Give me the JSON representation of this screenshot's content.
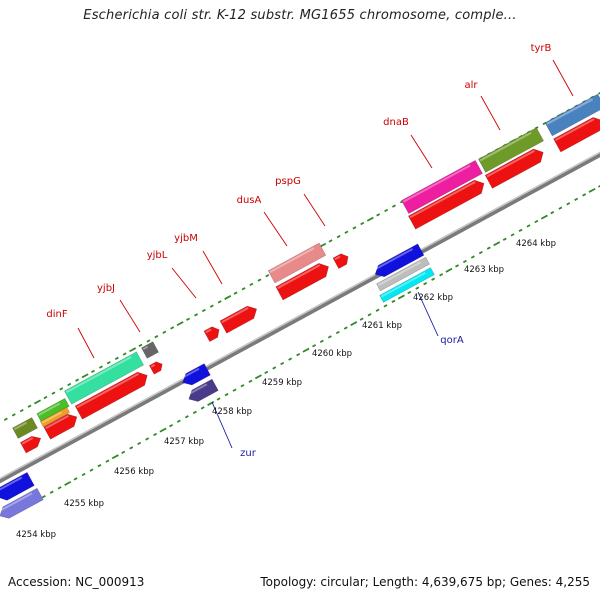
{
  "title": "Escherichia coli str. K-12 substr. MG1655 chromosome, comple...",
  "footer": {
    "accession": "Accession: NC_000913",
    "summary": "Topology: circular; Length: 4,639,675 bp; Genes: 4,255"
  },
  "colors": {
    "backbone": "#8a8a8a",
    "tick_dots": "#3a8a2a",
    "cds": "#ee1111",
    "label_plus": "#cc0000",
    "label_minus": "#1a1aa6"
  },
  "kbp_labels": [
    "4254 kbp",
    "4255 kbp",
    "4256 kbp",
    "4257 kbp",
    "4258 kbp",
    "4259 kbp",
    "4260 kbp",
    "4261 kbp",
    "4262 kbp",
    "4263 kbp",
    "4264 kbp"
  ],
  "gene_labels_plus": [
    "dinF",
    "yjbJ",
    "yjbL",
    "yjbM",
    "dusA",
    "pspG",
    "dnaB",
    "alr",
    "tyrB"
  ],
  "gene_labels_minus": [
    "zur",
    "qorA"
  ]
}
